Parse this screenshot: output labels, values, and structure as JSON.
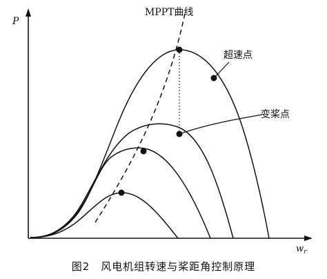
{
  "figure": {
    "axis_y_label": "P",
    "axis_x_label": "w",
    "axis_x_subscript": "r",
    "mppt_label": "MPPT曲线",
    "overspeed_label": "超速点",
    "pitch_label": "变桨点",
    "caption": "图2　风电机组转速与桨距角控制原理"
  }
}
